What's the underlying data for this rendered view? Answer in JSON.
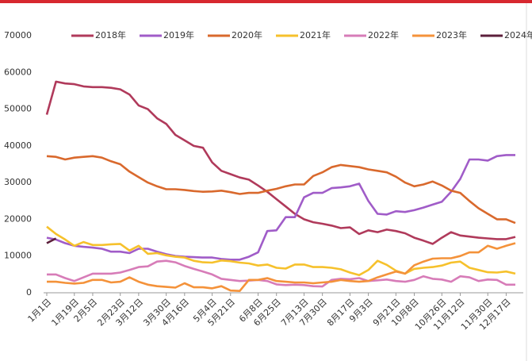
{
  "chart_data": {
    "type": "line",
    "categories": [
      "1月1日",
      null,
      null,
      "1月19日",
      null,
      "2月5日",
      null,
      null,
      "2月23日",
      null,
      "3月12日",
      null,
      null,
      "3月30日",
      null,
      "4月16日",
      null,
      null,
      "5月4日",
      null,
      "5月21日",
      null,
      null,
      "6月8日",
      null,
      "6月25日",
      null,
      null,
      "7月13日",
      null,
      "7月30日",
      null,
      null,
      "8月17日",
      null,
      "9月3日",
      null,
      null,
      "9月21日",
      null,
      "10月8日",
      null,
      null,
      "10月26日",
      null,
      "11月12日",
      null,
      null,
      "11月30日",
      null,
      "12月17日",
      null
    ],
    "series": [
      {
        "name": "2018年",
        "color": "#b03a5b",
        "values": [
          48500,
          57500,
          57000,
          56800,
          56200,
          56000,
          56000,
          55800,
          55400,
          54000,
          51000,
          50000,
          47500,
          46000,
          43000,
          41500,
          40000,
          39500,
          35500,
          33200,
          32300,
          31400,
          30800,
          29200,
          27500,
          25500,
          23500,
          21500,
          20000,
          19200,
          18800,
          18300,
          17600,
          17800,
          16000,
          17000,
          16500,
          17200,
          16800,
          16200,
          15000,
          14200,
          13300,
          15000,
          16500,
          15600,
          15300,
          15000,
          14800,
          14600,
          14600,
          15200
        ]
      },
      {
        "name": "2019年",
        "color": "#a05cc8",
        "values": [
          15000,
          14500,
          13500,
          12800,
          12500,
          12300,
          12000,
          11200,
          11200,
          10800,
          12000,
          12000,
          11200,
          10500,
          10000,
          9800,
          9700,
          9600,
          9600,
          9200,
          9000,
          9000,
          9800,
          11000,
          16800,
          17000,
          20600,
          20600,
          26000,
          27200,
          27200,
          28500,
          28700,
          29000,
          29700,
          25000,
          21500,
          21300,
          22200,
          22000,
          22500,
          23200,
          24000,
          24800,
          27500,
          31000,
          36300,
          36300,
          36000,
          37200,
          37500,
          37500
        ]
      },
      {
        "name": "2020年",
        "color": "#d9692d",
        "values": [
          37200,
          37000,
          36300,
          36800,
          37000,
          37200,
          36800,
          35800,
          35000,
          33000,
          31500,
          30000,
          29000,
          28200,
          28200,
          28000,
          27700,
          27500,
          27600,
          27800,
          27400,
          26900,
          27200,
          27200,
          27800,
          28300,
          29000,
          29500,
          29500,
          31800,
          32800,
          34200,
          34800,
          34500,
          34200,
          33600,
          33200,
          32800,
          31600,
          30000,
          29000,
          29500,
          30300,
          29200,
          27800,
          27200,
          25000,
          23000,
          21500,
          20000,
          20000,
          19000
        ]
      },
      {
        "name": "2021年",
        "color": "#f6c12c",
        "values": [
          18000,
          16000,
          14500,
          12800,
          13800,
          13000,
          13000,
          13200,
          13300,
          11500,
          12800,
          10600,
          10800,
          10200,
          9800,
          9600,
          8700,
          8300,
          8200,
          8800,
          8600,
          8200,
          8000,
          7400,
          7700,
          6800,
          6600,
          7700,
          7700,
          7000,
          7000,
          6800,
          6400,
          5500,
          4800,
          6200,
          8700,
          7600,
          6000,
          5200,
          6500,
          6800,
          7000,
          7400,
          8200,
          8500,
          6800,
          6200,
          5600,
          5500,
          5800,
          5200
        ]
      },
      {
        "name": "2022年",
        "color": "#d77cb8",
        "values": [
          5000,
          5000,
          4000,
          3200,
          4200,
          5200,
          5200,
          5200,
          5500,
          6200,
          7000,
          7200,
          8500,
          8700,
          8300,
          7300,
          6500,
          5800,
          5000,
          3800,
          3500,
          3200,
          3300,
          3500,
          3200,
          2300,
          2100,
          2200,
          2100,
          1800,
          1700,
          3500,
          3800,
          3700,
          4000,
          3200,
          3400,
          3600,
          3200,
          3000,
          3500,
          4500,
          3800,
          3600,
          3000,
          4500,
          4200,
          3200,
          3600,
          3500,
          2200,
          2200
        ]
      },
      {
        "name": "2023年",
        "color": "#f4923a",
        "values": [
          3000,
          3000,
          2700,
          2500,
          2700,
          3500,
          3500,
          2800,
          3000,
          4200,
          3000,
          2200,
          1800,
          1600,
          1400,
          2600,
          1500,
          1500,
          1200,
          1800,
          600,
          500,
          3500,
          3500,
          4000,
          3200,
          3000,
          2800,
          2800,
          2600,
          2800,
          3000,
          3500,
          3200,
          3000,
          3200,
          4200,
          5000,
          5800,
          5200,
          7500,
          8500,
          9300,
          9400,
          9400,
          10000,
          11000,
          11000,
          12800,
          12000,
          12800,
          13500
        ]
      },
      {
        "name": "2024年",
        "color": "#5c1f3b",
        "values": [
          13500,
          14800,
          null,
          null,
          null,
          null,
          null,
          null,
          null,
          null,
          null,
          null,
          null,
          null,
          null,
          null,
          null,
          null,
          null,
          null,
          null,
          null,
          null,
          null,
          null,
          null,
          null,
          null,
          null,
          null,
          null,
          null,
          null,
          null,
          null,
          null,
          null,
          null,
          null,
          null,
          null,
          null,
          null,
          null,
          null,
          null,
          null,
          null,
          null,
          null,
          null,
          null
        ]
      }
    ],
    "ylim": [
      0,
      70000
    ],
    "yticks": [
      0,
      10000,
      20000,
      30000,
      40000,
      50000,
      60000,
      70000
    ],
    "grid": false
  }
}
